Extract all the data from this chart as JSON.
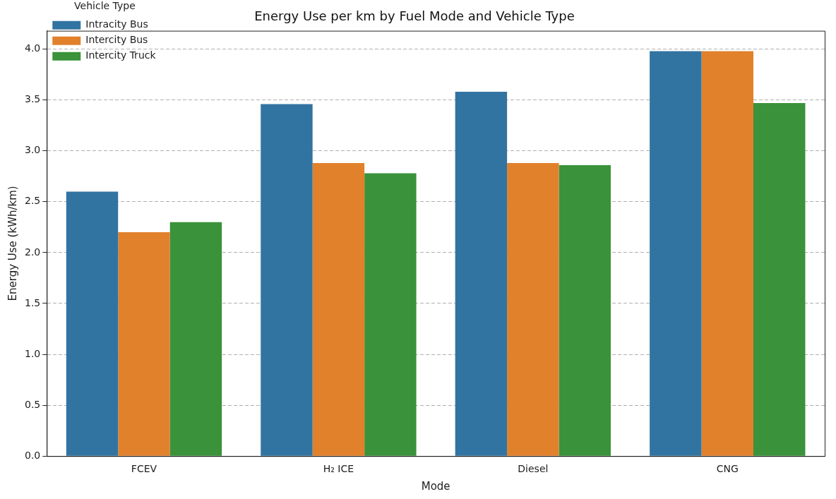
{
  "chart_data": {
    "type": "bar",
    "title": "Energy Use per km by Fuel Mode and Vehicle Type",
    "xlabel": "Mode",
    "ylabel": "Energy Use (kWh/km)",
    "legend_title": "Vehicle Type",
    "categories": [
      "FCEV",
      "H₂ ICE",
      "Diesel",
      "CNG"
    ],
    "series": [
      {
        "name": "Intracity Bus",
        "color": "#3274a1",
        "values": [
          2.6,
          3.46,
          3.58,
          3.98
        ]
      },
      {
        "name": "Intercity Bus",
        "color": "#e1812c",
        "values": [
          2.2,
          2.88,
          2.88,
          3.98
        ]
      },
      {
        "name": "Intercity Truck",
        "color": "#3a923a",
        "values": [
          2.3,
          2.78,
          2.86,
          3.47
        ]
      }
    ],
    "ylim": [
      0,
      4.18
    ],
    "yticks": [
      {
        "value": 0,
        "label": "0.0"
      },
      {
        "value": 0.5,
        "label": "0.5"
      },
      {
        "value": 1,
        "label": "1.0"
      },
      {
        "value": 1.5,
        "label": "1.5"
      },
      {
        "value": 2,
        "label": "2.0"
      },
      {
        "value": 2.5,
        "label": "2.5"
      },
      {
        "value": 3,
        "label": "3.0"
      },
      {
        "value": 3.5,
        "label": "3.5"
      },
      {
        "value": 4,
        "label": "4.0"
      }
    ],
    "grid": "y",
    "legend": "top left"
  }
}
